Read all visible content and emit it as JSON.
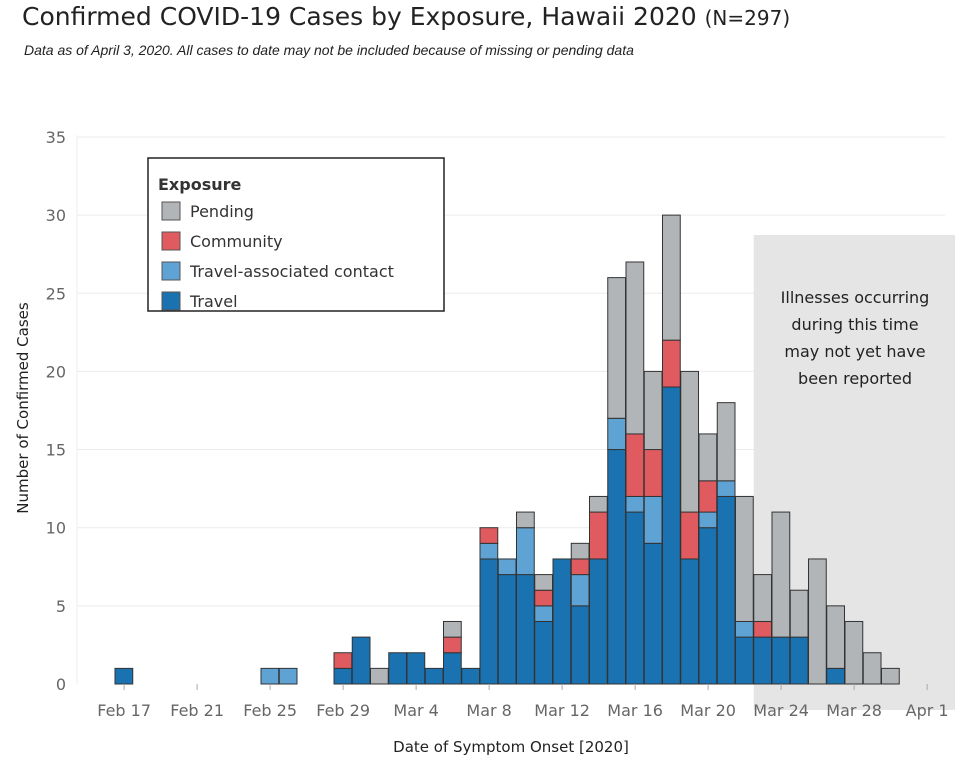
{
  "header": {
    "title": "Confirmed COVID-19 Cases by Exposure, Hawaii 2020",
    "n_label": "(N=297)",
    "subtitle": "Data as of April 3, 2020. All cases to date may not be included because of missing or pending data"
  },
  "annotation": {
    "lines": [
      "Illnesses occurring",
      "during this time",
      "may not yet have",
      "been reported"
    ],
    "start_date": "Mar 23",
    "fill_color": "#e5e5e5"
  },
  "chart_data": {
    "type": "bar",
    "stacked": true,
    "xlabel": "Date of Symptom Onset [2020]",
    "ylabel": "Number of Confirmed Cases",
    "ylim": [
      0,
      35
    ],
    "yticks": [
      0,
      5,
      10,
      15,
      20,
      25,
      30,
      35
    ],
    "xticks": [
      "Feb 17",
      "Feb 21",
      "Feb 25",
      "Feb 29",
      "Mar 4",
      "Mar 8",
      "Mar 12",
      "Mar 16",
      "Mar 20",
      "Mar 24",
      "Mar 28",
      "Apr 1"
    ],
    "grid": true,
    "legend": {
      "title": "Exposure",
      "position": "top-left",
      "entries": [
        "Pending",
        "Community",
        "Travel-associated contact",
        "Travel"
      ]
    },
    "categories": [
      "Feb 17",
      "Feb 18",
      "Feb 19",
      "Feb 20",
      "Feb 21",
      "Feb 22",
      "Feb 23",
      "Feb 24",
      "Feb 25",
      "Feb 26",
      "Feb 27",
      "Feb 28",
      "Feb 29",
      "Mar 1",
      "Mar 2",
      "Mar 3",
      "Mar 4",
      "Mar 5",
      "Mar 6",
      "Mar 7",
      "Mar 8",
      "Mar 9",
      "Mar 10",
      "Mar 11",
      "Mar 12",
      "Mar 13",
      "Mar 14",
      "Mar 15",
      "Mar 16",
      "Mar 17",
      "Mar 18",
      "Mar 19",
      "Mar 20",
      "Mar 21",
      "Mar 22",
      "Mar 23",
      "Mar 24",
      "Mar 25",
      "Mar 26",
      "Mar 27",
      "Mar 28",
      "Mar 29",
      "Mar 30",
      "Mar 31"
    ],
    "series": [
      {
        "name": "Travel",
        "color": "#1a73b0",
        "values": [
          1,
          0,
          0,
          0,
          0,
          0,
          0,
          0,
          0,
          0,
          0,
          0,
          1,
          3,
          0,
          2,
          2,
          1,
          2,
          1,
          8,
          7,
          7,
          4,
          8,
          5,
          8,
          15,
          11,
          9,
          19,
          8,
          10,
          12,
          3,
          3,
          3,
          3,
          0,
          1,
          0,
          0,
          0,
          0
        ]
      },
      {
        "name": "Travel-associated contact",
        "color": "#5fa2d4",
        "values": [
          0,
          0,
          0,
          0,
          0,
          0,
          0,
          0,
          1,
          1,
          0,
          0,
          0,
          0,
          0,
          0,
          0,
          0,
          0,
          0,
          1,
          1,
          3,
          1,
          0,
          2,
          0,
          2,
          1,
          3,
          0,
          0,
          1,
          1,
          1,
          0,
          0,
          0,
          0,
          0,
          0,
          0,
          0,
          0
        ]
      },
      {
        "name": "Community",
        "color": "#e05b5f",
        "values": [
          0,
          0,
          0,
          0,
          0,
          0,
          0,
          0,
          0,
          0,
          0,
          0,
          1,
          0,
          0,
          0,
          0,
          0,
          1,
          0,
          1,
          0,
          0,
          1,
          0,
          1,
          3,
          0,
          4,
          3,
          3,
          3,
          2,
          0,
          0,
          1,
          0,
          0,
          0,
          0,
          0,
          0,
          0,
          0
        ]
      },
      {
        "name": "Pending",
        "color": "#b1b5b8",
        "values": [
          0,
          0,
          0,
          0,
          0,
          0,
          0,
          0,
          0,
          0,
          0,
          0,
          0,
          0,
          1,
          0,
          0,
          0,
          1,
          0,
          0,
          0,
          1,
          1,
          0,
          1,
          1,
          9,
          11,
          5,
          8,
          9,
          3,
          5,
          8,
          3,
          8,
          3,
          8,
          4,
          4,
          2,
          1,
          0
        ]
      }
    ]
  }
}
